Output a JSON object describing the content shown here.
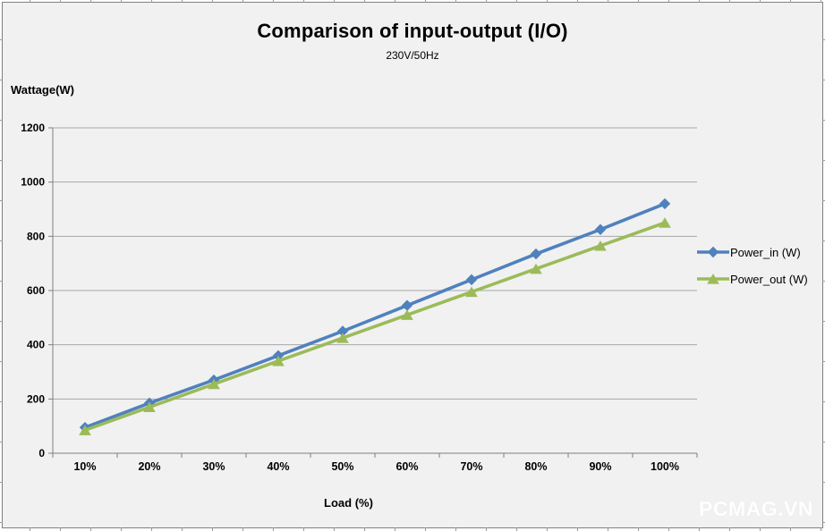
{
  "chart": {
    "title": "Comparison of input-output (I/O)",
    "subtitle": "230V/50Hz",
    "y_axis_title": "Wattage(W)",
    "x_axis_title": "Load (%)"
  },
  "watermark": "PCMAG.VN",
  "colors": {
    "background": "#f1f1f1",
    "gridline": "#a6a6a6",
    "axis": "#808080",
    "text": "#000000",
    "power_in": "#4f81bd",
    "power_out": "#9bbb59"
  },
  "chart_data": {
    "type": "line",
    "title": "Comparison of input-output (I/O)",
    "subtitle": "230V/50Hz",
    "xlabel": "Load (%)",
    "ylabel": "Wattage(W)",
    "categories": [
      "10%",
      "20%",
      "30%",
      "40%",
      "50%",
      "60%",
      "70%",
      "80%",
      "90%",
      "100%"
    ],
    "series": [
      {
        "name": "Power_in (W)",
        "color": "#4f81bd",
        "marker": "diamond",
        "values": [
          95,
          185,
          270,
          360,
          450,
          545,
          640,
          735,
          825,
          920
        ]
      },
      {
        "name": "Power_out (W)",
        "color": "#9bbb59",
        "marker": "triangle",
        "values": [
          85,
          170,
          255,
          340,
          425,
          510,
          595,
          680,
          765,
          850
        ]
      }
    ],
    "ylim": [
      0,
      1200
    ],
    "y_ticks": [
      0,
      200,
      400,
      600,
      800,
      1000,
      1200
    ],
    "grid": true,
    "legend_position": "right"
  }
}
